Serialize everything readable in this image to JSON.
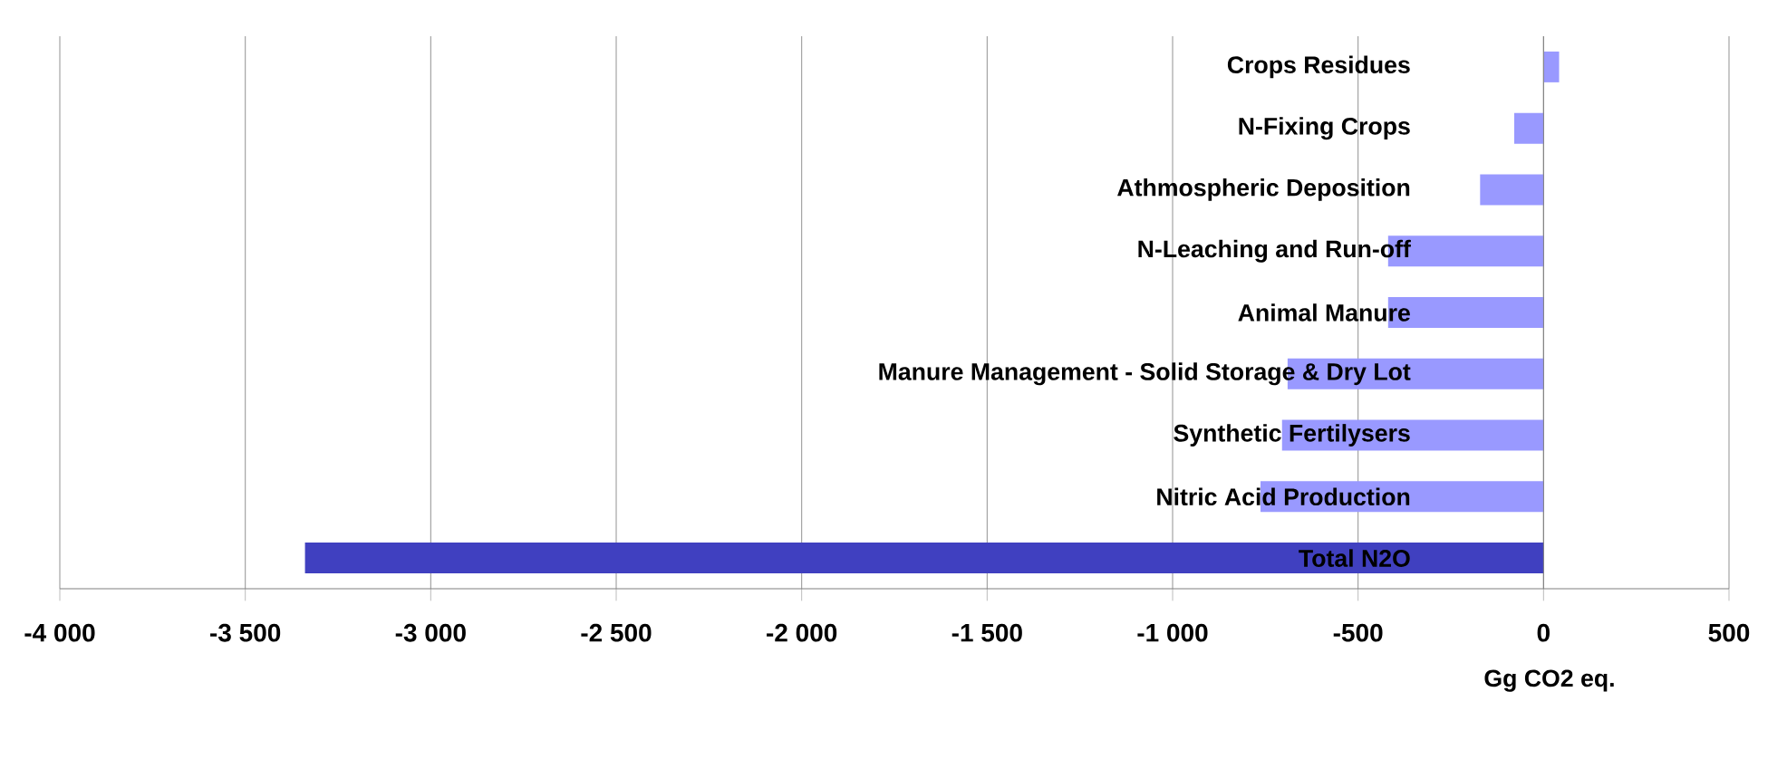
{
  "chart_data": {
    "type": "bar",
    "orientation": "horizontal",
    "categories": [
      "Crops Residues",
      "N-Fixing Crops",
      "Athmospheric Deposition",
      "N-Leaching and Run-off",
      "Animal Manure",
      "Manure Management - Solid Storage & Dry Lot",
      "Synthetic Fertilysers",
      "Nitric Acid Production",
      "Total N2O"
    ],
    "values": [
      42,
      -79,
      -171,
      -419,
      -419,
      -690,
      -705,
      -763,
      -3339
    ],
    "colors": [
      "#9999ff",
      "#9999ff",
      "#9999ff",
      "#9999ff",
      "#9999ff",
      "#9999ff",
      "#9999ff",
      "#9999ff",
      "#4040c0"
    ],
    "xlim": [
      -4000,
      500
    ],
    "xticks": [
      {
        "value": -4000,
        "label": "-4 000"
      },
      {
        "value": -3500,
        "label": "-3 500"
      },
      {
        "value": -3000,
        "label": "-3 000"
      },
      {
        "value": -2500,
        "label": "-2 500"
      },
      {
        "value": -2000,
        "label": "-2 000"
      },
      {
        "value": -1500,
        "label": "-1 500"
      },
      {
        "value": -1000,
        "label": "-1 000"
      },
      {
        "value": -500,
        "label": "-500"
      },
      {
        "value": 0,
        "label": "0"
      },
      {
        "value": 500,
        "label": "500"
      }
    ],
    "xlabel": "Gg CO2 eq.",
    "grid": "x"
  }
}
